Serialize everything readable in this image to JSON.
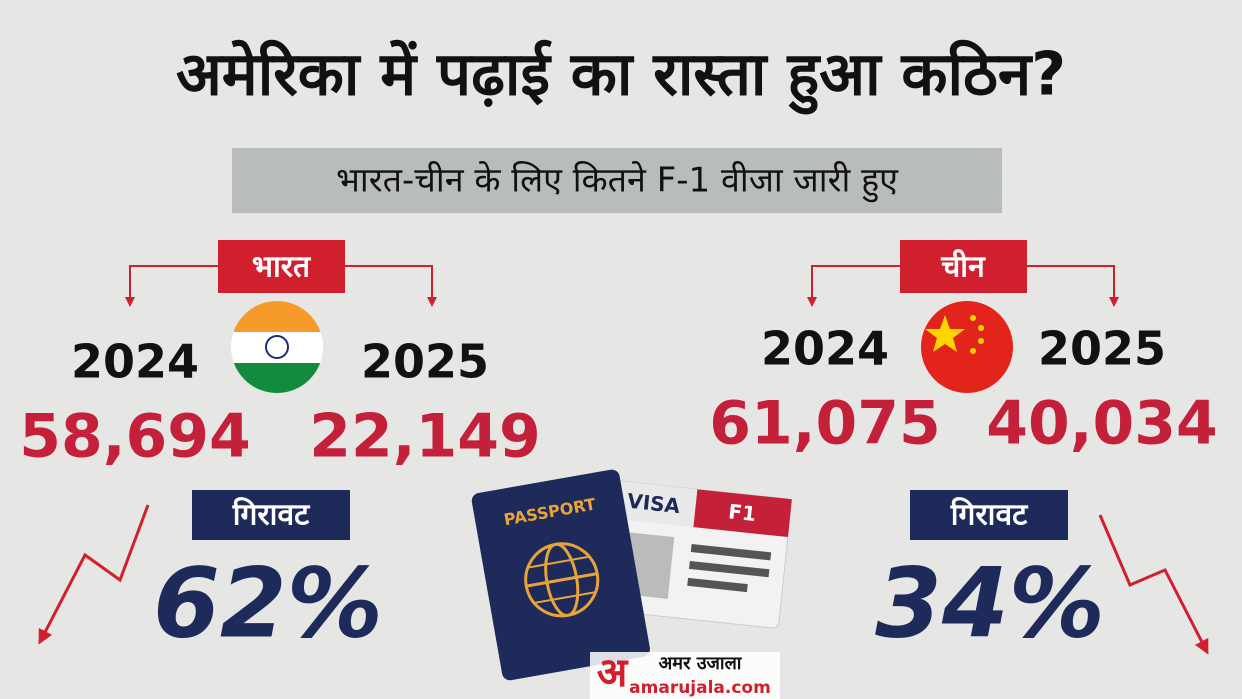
{
  "title": "अमेरिका में पढ़ाई का रास्ता हुआ कठिन?",
  "subtitle": "भारत-चीन के लिए कितने F-1 वीजा जारी हुए",
  "india": {
    "label": "भारत",
    "year_a": "2024",
    "year_b": "2025",
    "value_a": "58,694",
    "value_b": "22,149",
    "decline_label": "गिरावट",
    "decline": "62%"
  },
  "china": {
    "label": "चीन",
    "year_a": "2024",
    "year_b": "2025",
    "value_a": "61,075",
    "value_b": "40,034",
    "decline_label": "गिरावट",
    "decline": "34%"
  },
  "graphic": {
    "passport": "PASSPORT",
    "visa": "VISA",
    "visa_type": "F1"
  },
  "logo": {
    "mark": "अ",
    "name": "अमर उजाला",
    "site": "amarujala.com"
  }
}
